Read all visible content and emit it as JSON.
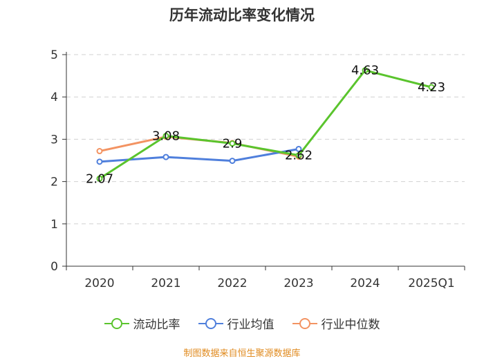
{
  "chart_data": {
    "type": "line",
    "title": "历年流动比率变化情况",
    "categories": [
      "2020",
      "2021",
      "2022",
      "2023",
      "2024",
      "2025Q1"
    ],
    "ylim": [
      0,
      5
    ],
    "yticks": [
      "0",
      "1",
      "2",
      "3",
      "4",
      "5"
    ],
    "grid": true,
    "legend_position": "bottom",
    "series": [
      {
        "name": "流动比率",
        "color": "#5ac42d",
        "values": [
          2.07,
          3.08,
          2.9,
          2.62,
          4.63,
          4.23
        ],
        "labels": [
          "2.07",
          "3.08",
          "2.9",
          "2.62",
          "4.63",
          "4.23"
        ]
      },
      {
        "name": "行业均值",
        "color": "#4f7fdc",
        "values": [
          2.47,
          2.58,
          2.49,
          2.77,
          null,
          null
        ]
      },
      {
        "name": "行业中位数",
        "color": "#f39362",
        "values": [
          2.72,
          3.06,
          2.91,
          2.59,
          null,
          null
        ]
      }
    ]
  },
  "source": "制图数据来自恒生聚源数据库"
}
